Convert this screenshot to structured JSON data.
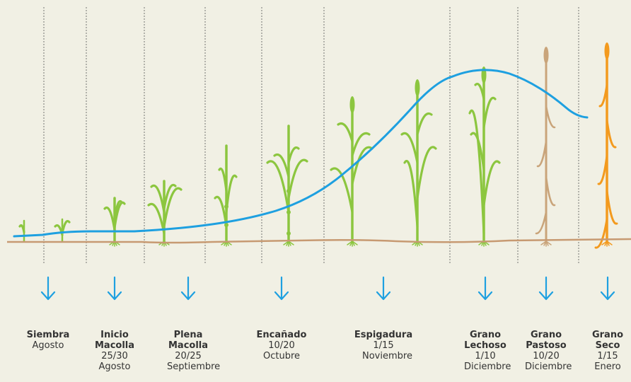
{
  "colors": {
    "background": "#f1f0e4",
    "curve": "#1ea0e0",
    "arrow": "#1ea0e0",
    "ground": "#c79a72",
    "plant_green": "#8cc63f",
    "plant_dry": "#c9a47a",
    "plant_orange": "#f39a1e",
    "divider": "#555555"
  },
  "stages": [
    {
      "name": "Siembra",
      "date": "Agosto"
    },
    {
      "name": "Inicio Macolla",
      "date": "25/30 Agosto"
    },
    {
      "name": "Plena Macolla",
      "date": "20/25 Septiembre"
    },
    {
      "name": "Encañado",
      "date": "10/20 Octubre"
    },
    {
      "name": "Espigadura",
      "date": "1/15 Noviembre"
    },
    {
      "name": "Grano Lechoso",
      "date": "1/10 Diciembre"
    },
    {
      "name": "Grano Pastoso",
      "date": "10/20 Diciembre"
    },
    {
      "name": "Grano Seco",
      "date": "1/15 Enero"
    }
  ]
}
